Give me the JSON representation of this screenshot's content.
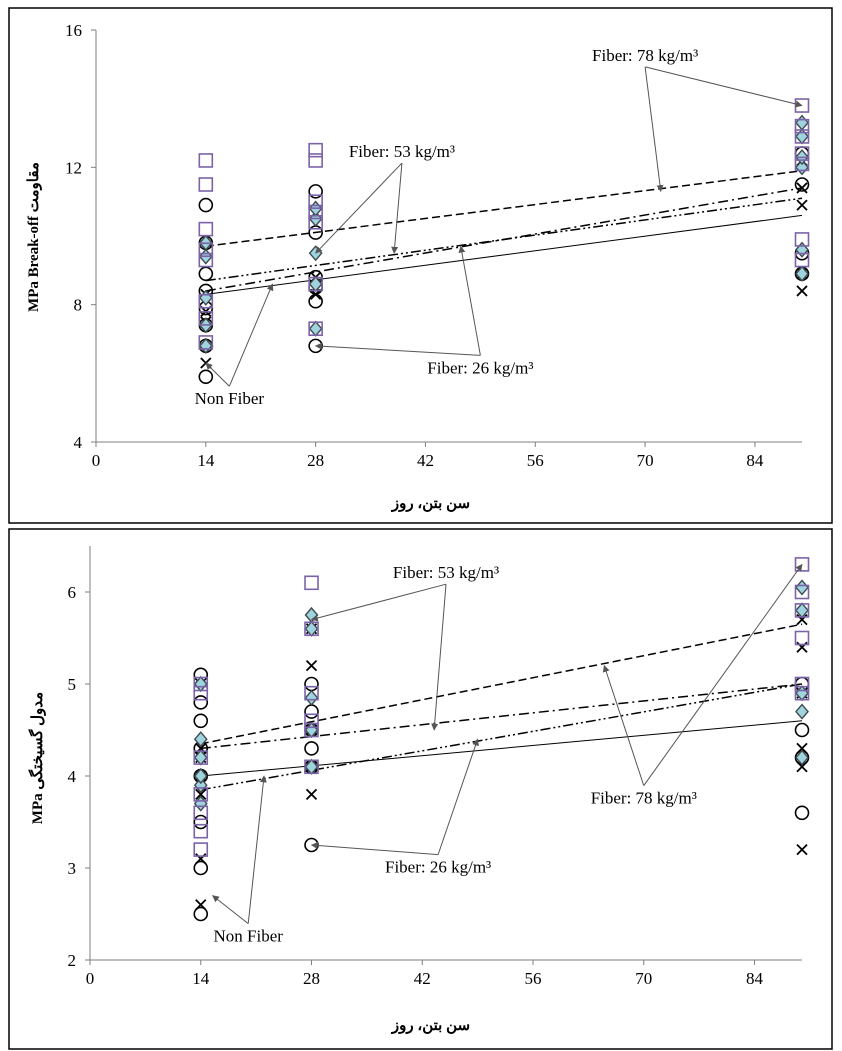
{
  "colors": {
    "frame": "#000000",
    "axis": "#7f7f7f",
    "square_marker": "#7b63a8",
    "diamond_fill": "#9fd3de",
    "diamond_stroke": "#3e4a4f",
    "circle_marker": "#000000",
    "cross_marker": "#000000",
    "arrow": "#555555"
  },
  "chart_data": [
    {
      "type": "scatter",
      "ylabel": "MPa Break-off مقاومت",
      "xlabel": "سن بتن، روز",
      "xlim": [
        0,
        90
      ],
      "ylim": [
        4,
        16
      ],
      "x_ticks": [
        "0",
        "14",
        "28",
        "42",
        "56",
        "70",
        "84"
      ],
      "y_ticks": [
        "4",
        "8",
        "12",
        "16"
      ],
      "grid": false,
      "series": [
        {
          "name": "Non Fiber",
          "marker": "cross",
          "points": [
            [
              14,
              6.3
            ],
            [
              14,
              7.5
            ],
            [
              14,
              7.8
            ],
            [
              14,
              8.3
            ],
            [
              28,
              8.3
            ],
            [
              28,
              8.5
            ],
            [
              28,
              8.8
            ],
            [
              90,
              8.4
            ],
            [
              90,
              8.9
            ],
            [
              90,
              10.9
            ],
            [
              90,
              11.4
            ],
            [
              90,
              12.2
            ]
          ],
          "trend": {
            "style": "solid",
            "from": [
              14,
              8.3
            ],
            "to": [
              90,
              10.6
            ]
          }
        },
        {
          "name": "Fiber: 26 kg/m³",
          "marker": "circle",
          "points": [
            [
              14,
              5.9
            ],
            [
              14,
              6.8
            ],
            [
              14,
              7.4
            ],
            [
              14,
              7.9
            ],
            [
              14,
              8.4
            ],
            [
              14,
              8.9
            ],
            [
              14,
              9.8
            ],
            [
              14,
              10.9
            ],
            [
              28,
              6.8
            ],
            [
              28,
              8.1
            ],
            [
              28,
              8.5
            ],
            [
              28,
              8.8
            ],
            [
              28,
              10.1
            ],
            [
              28,
              11.3
            ],
            [
              90,
              8.9
            ],
            [
              90,
              9.5
            ],
            [
              90,
              11.5
            ],
            [
              90,
              12.4
            ]
          ],
          "trend": {
            "style": "dash-dot-dot",
            "from": [
              14,
              8.7
            ],
            "to": [
              90,
              11.1
            ]
          }
        },
        {
          "name": "Fiber: 53 kg/m³",
          "marker": "diamond",
          "points": [
            [
              14,
              6.8
            ],
            [
              14,
              7.4
            ],
            [
              14,
              8.2
            ],
            [
              14,
              9.4
            ],
            [
              14,
              9.8
            ],
            [
              28,
              7.3
            ],
            [
              28,
              8.6
            ],
            [
              28,
              9.5
            ],
            [
              28,
              10.5
            ],
            [
              28,
              10.8
            ],
            [
              90,
              8.9
            ],
            [
              90,
              9.6
            ],
            [
              90,
              12.0
            ],
            [
              90,
              12.3
            ],
            [
              90,
              12.9
            ],
            [
              90,
              13.3
            ]
          ],
          "trend": {
            "style": "dash-dot",
            "from": [
              14,
              8.4
            ],
            "to": [
              90,
              11.4
            ]
          }
        },
        {
          "name": "Fiber: 78 kg/m³",
          "marker": "square",
          "points": [
            [
              14,
              6.9
            ],
            [
              14,
              7.6
            ],
            [
              14,
              8.1
            ],
            [
              14,
              9.3
            ],
            [
              14,
              9.6
            ],
            [
              14,
              10.2
            ],
            [
              14,
              11.5
            ],
            [
              14,
              12.2
            ],
            [
              28,
              7.3
            ],
            [
              28,
              8.6
            ],
            [
              28,
              10.4
            ],
            [
              28,
              10.7
            ],
            [
              28,
              11.0
            ],
            [
              28,
              12.2
            ],
            [
              28,
              12.5
            ],
            [
              90,
              9.3
            ],
            [
              90,
              9.9
            ],
            [
              90,
              12.1
            ],
            [
              90,
              12.4
            ],
            [
              90,
              12.9
            ],
            [
              90,
              13.2
            ],
            [
              90,
              13.8
            ]
          ],
          "trend": {
            "style": "dashed",
            "from": [
              14,
              9.7
            ],
            "to": [
              90,
              11.9
            ]
          }
        }
      ],
      "annotations": [
        {
          "text": "Fiber: 78 kg/m³",
          "label_at": [
            70,
            15.1
          ],
          "arrows_to": [
            [
              90,
              13.8
            ],
            [
              72,
              11.3
            ]
          ]
        },
        {
          "text": "Fiber: 53 kg/m³",
          "label_at": [
            39,
            12.3
          ],
          "arrows_to": [
            [
              28,
              9.5
            ],
            [
              38,
              9.5
            ]
          ]
        },
        {
          "text": "Fiber: 26 kg/m³",
          "label_at": [
            49,
            6.0
          ],
          "arrows_to": [
            [
              28,
              6.8
            ],
            [
              46.5,
              9.7
            ]
          ]
        },
        {
          "text": "Non Fiber",
          "label_at": [
            17,
            5.1
          ],
          "arrows_to": [
            [
              14,
              6.3
            ],
            [
              22.5,
              8.6
            ]
          ]
        }
      ]
    },
    {
      "type": "scatter",
      "ylabel": "MPa مدول گسیختگی",
      "xlabel": "سن بتن، روز",
      "xlim": [
        0,
        90
      ],
      "ylim": [
        2,
        6.5
      ],
      "x_ticks": [
        "0",
        "14",
        "28",
        "42",
        "56",
        "70",
        "84"
      ],
      "y_ticks": [
        "2",
        "3",
        "4",
        "5",
        "6"
      ],
      "grid": false,
      "series": [
        {
          "name": "Non Fiber",
          "marker": "cross",
          "points": [
            [
              14,
              2.6
            ],
            [
              14,
              3.1
            ],
            [
              14,
              3.8
            ],
            [
              14,
              4.0
            ],
            [
              14,
              4.2
            ],
            [
              14,
              4.3
            ],
            [
              28,
              3.8
            ],
            [
              28,
              4.1
            ],
            [
              28,
              4.5
            ],
            [
              28,
              5.2
            ],
            [
              28,
              5.6
            ],
            [
              90,
              3.2
            ],
            [
              90,
              4.1
            ],
            [
              90,
              4.3
            ],
            [
              90,
              4.9
            ],
            [
              90,
              5.4
            ],
            [
              90,
              5.7
            ]
          ],
          "trend": {
            "style": "solid",
            "from": [
              14,
              4.0
            ],
            "to": [
              90,
              4.6
            ]
          }
        },
        {
          "name": "Fiber: 26 kg/m³",
          "marker": "circle",
          "points": [
            [
              14,
              2.5
            ],
            [
              14,
              3.0
            ],
            [
              14,
              3.5
            ],
            [
              14,
              4.0
            ],
            [
              14,
              4.3
            ],
            [
              14,
              4.6
            ],
            [
              14,
              4.8
            ],
            [
              14,
              5.1
            ],
            [
              28,
              3.25
            ],
            [
              28,
              4.1
            ],
            [
              28,
              4.3
            ],
            [
              28,
              4.5
            ],
            [
              28,
              4.7
            ],
            [
              28,
              5.0
            ],
            [
              90,
              3.6
            ],
            [
              90,
              4.2
            ],
            [
              90,
              4.5
            ],
            [
              90,
              5.0
            ]
          ],
          "trend": {
            "style": "dash-dot-dot",
            "from": [
              14,
              3.85
            ],
            "to": [
              90,
              5.0
            ]
          }
        },
        {
          "name": "Fiber: 53 kg/m³",
          "marker": "diamond",
          "points": [
            [
              14,
              3.7
            ],
            [
              14,
              3.9
            ],
            [
              14,
              4.0
            ],
            [
              14,
              4.2
            ],
            [
              14,
              4.4
            ],
            [
              14,
              5.0
            ],
            [
              28,
              4.1
            ],
            [
              28,
              4.5
            ],
            [
              28,
              4.85
            ],
            [
              28,
              5.6
            ],
            [
              28,
              5.75
            ],
            [
              90,
              4.2
            ],
            [
              90,
              4.7
            ],
            [
              90,
              4.9
            ],
            [
              90,
              5.8
            ],
            [
              90,
              6.05
            ]
          ],
          "trend": {
            "style": "dash-dot",
            "from": [
              14,
              4.3
            ],
            "to": [
              90,
              5.0
            ]
          }
        },
        {
          "name": "Fiber: 78 kg/m³",
          "marker": "square",
          "points": [
            [
              14,
              3.2
            ],
            [
              14,
              3.4
            ],
            [
              14,
              3.6
            ],
            [
              14,
              3.8
            ],
            [
              14,
              4.2
            ],
            [
              14,
              4.9
            ],
            [
              14,
              5.0
            ],
            [
              28,
              4.1
            ],
            [
              28,
              4.5
            ],
            [
              28,
              4.6
            ],
            [
              28,
              4.9
            ],
            [
              28,
              5.6
            ],
            [
              28,
              6.1
            ],
            [
              90,
              4.9
            ],
            [
              90,
              5.0
            ],
            [
              90,
              5.5
            ],
            [
              90,
              5.8
            ],
            [
              90,
              6.0
            ],
            [
              90,
              6.3
            ]
          ],
          "trend": {
            "style": "dashed",
            "from": [
              14,
              4.35
            ],
            "to": [
              90,
              5.65
            ]
          }
        }
      ],
      "annotations": [
        {
          "text": "Fiber: 53 kg/m³",
          "label_at": [
            45,
            6.15
          ],
          "arrows_to": [
            [
              28,
              5.7
            ],
            [
              43.5,
              4.5
            ]
          ]
        },
        {
          "text": "Fiber: 78 kg/m³",
          "label_at": [
            70,
            3.7
          ],
          "arrows_to": [
            [
              90,
              6.3
            ],
            [
              65,
              5.2
            ]
          ]
        },
        {
          "text": "Fiber: 26 kg/m³",
          "label_at": [
            44,
            2.95
          ],
          "arrows_to": [
            [
              28,
              3.25
            ],
            [
              49,
              4.4
            ]
          ]
        },
        {
          "text": "Non Fiber",
          "label_at": [
            20,
            2.2
          ],
          "arrows_to": [
            [
              15.5,
              2.7
            ],
            [
              22,
              4.0
            ]
          ]
        }
      ]
    }
  ]
}
